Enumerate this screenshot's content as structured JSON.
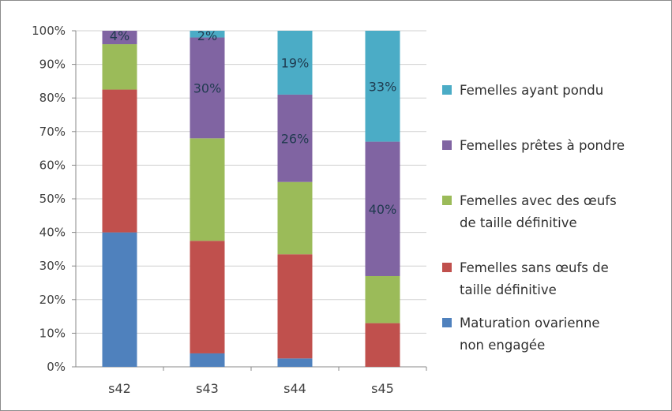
{
  "chart_data": {
    "type": "bar",
    "stacked": true,
    "percent_stacked": true,
    "categories": [
      "s42",
      "s43",
      "s44",
      "s45"
    ],
    "y_ticks": [
      "0%",
      "10%",
      "20%",
      "30%",
      "40%",
      "50%",
      "60%",
      "70%",
      "80%",
      "90%",
      "100%"
    ],
    "ylim": [
      0,
      100
    ],
    "grid": true,
    "legend_position": "right",
    "series": [
      {
        "name": "Maturation ovarienne non engagée",
        "legend_lines": [
          "Maturation ovarienne",
          "non engagée"
        ],
        "color": "#4f81bd",
        "values": [
          40,
          4,
          2.5,
          0
        ],
        "labels": [
          "",
          "",
          "",
          ""
        ]
      },
      {
        "name": "Femelles sans œufs de taille définitive",
        "legend_lines": [
          "Femelles sans œufs de",
          "taille définitive"
        ],
        "color": "#c0504d",
        "values": [
          42.5,
          33.5,
          31,
          13
        ],
        "labels": [
          "",
          "",
          "",
          ""
        ]
      },
      {
        "name": "Femelles avec des œufs de taille définitive",
        "legend_lines": [
          "Femelles avec des œufs",
          "de taille définitive"
        ],
        "color": "#9bbb59",
        "values": [
          13.5,
          30.5,
          21.5,
          14
        ],
        "labels": [
          "",
          "",
          "",
          ""
        ]
      },
      {
        "name": "Femelles prêtes à pondre",
        "legend_lines": [
          "Femelles prêtes à pondre"
        ],
        "color": "#8064a2",
        "values": [
          4,
          30,
          26,
          40
        ],
        "labels": [
          "4%",
          "30%",
          "26%",
          "40%"
        ]
      },
      {
        "name": "Femelles ayant pondu",
        "legend_lines": [
          "Femelles ayant pondu"
        ],
        "color": "#4bacc6",
        "values": [
          0,
          2,
          19,
          33
        ],
        "labels": [
          "",
          "2%",
          "19%",
          "33%"
        ]
      }
    ]
  }
}
